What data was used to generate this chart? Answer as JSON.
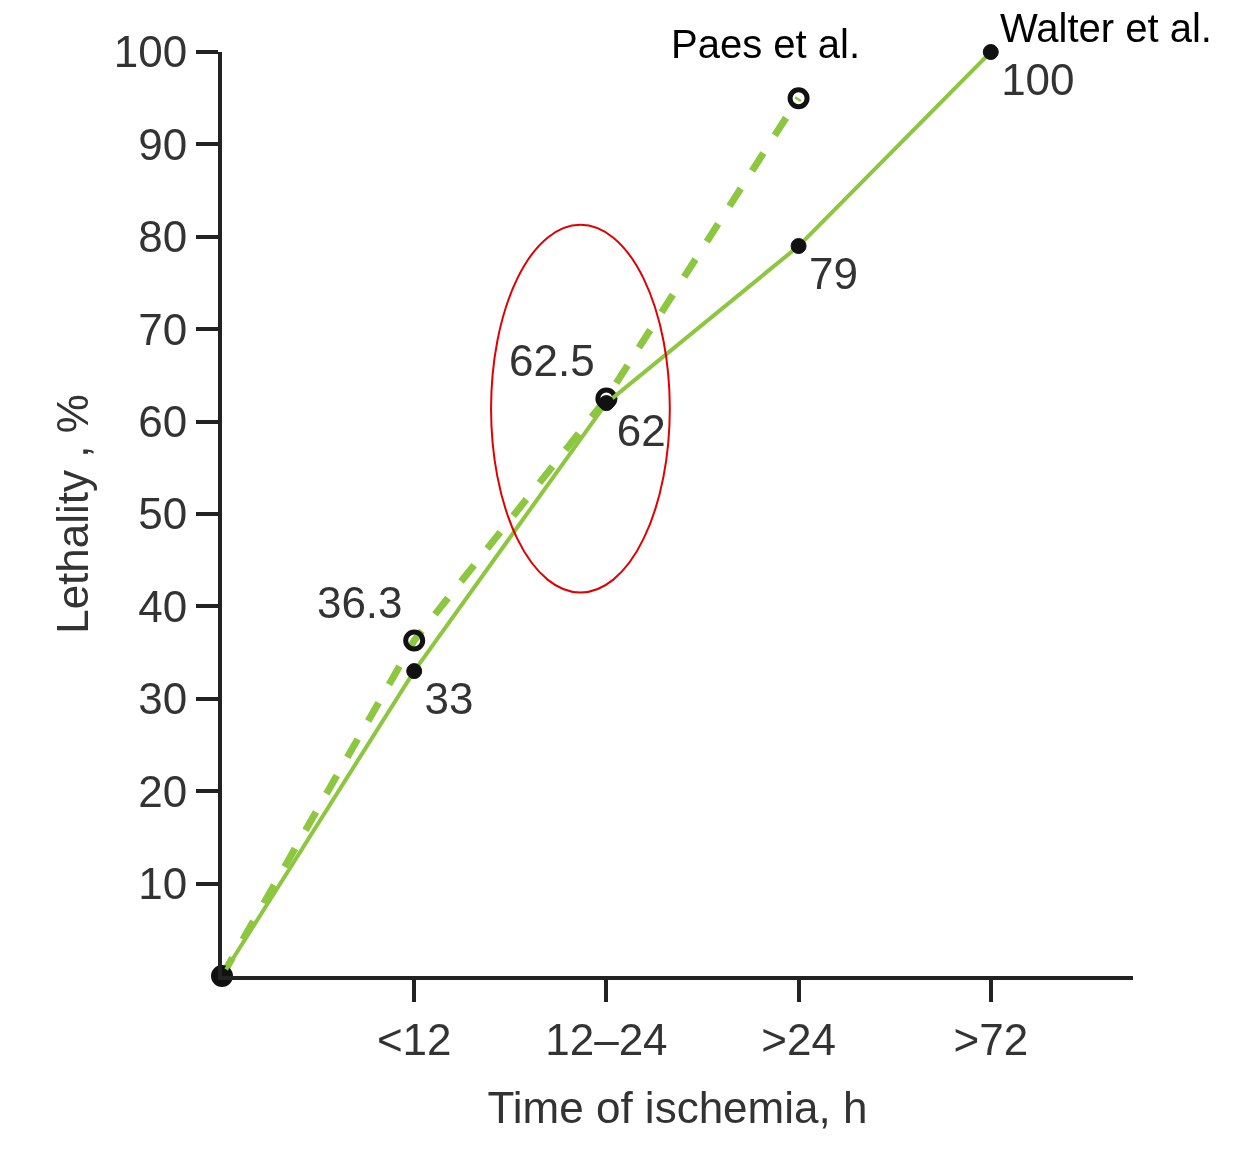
{
  "chart_data": {
    "type": "line",
    "xlabel": "Time of ischemia, h",
    "ylabel": "Lethality , %",
    "categories": [
      null,
      "<12",
      "12–24",
      ">24",
      ">72"
    ],
    "ylim": [
      0,
      100
    ],
    "yticks": [
      10,
      20,
      30,
      40,
      50,
      60,
      70,
      80,
      90,
      100
    ],
    "grid": false,
    "marker": "circle",
    "series": [
      {
        "name": "Paes et al.",
        "color": "#8dc63f",
        "line_style": "dashed",
        "values": [
          0,
          36.3,
          62.5,
          95,
          null
        ],
        "value_labels": [
          null,
          "36.3",
          "62.5",
          null,
          null
        ]
      },
      {
        "name": "Walter et al.",
        "color": "#8dc63f",
        "line_style": "solid",
        "values": [
          0,
          33,
          62,
          79,
          100
        ],
        "value_labels": [
          null,
          "33",
          "62",
          "79",
          "100"
        ]
      }
    ]
  }
}
